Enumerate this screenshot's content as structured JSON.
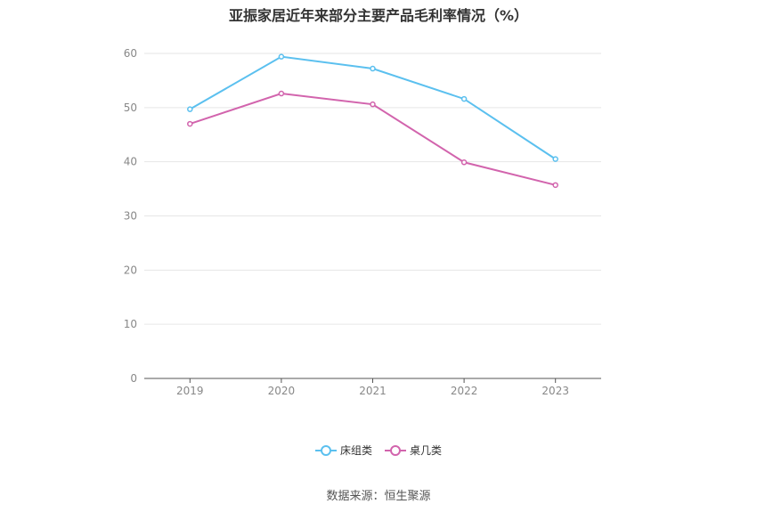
{
  "chart_data": {
    "type": "line",
    "title": "亚振家居近年来部分主要产品毛利率情况（%）",
    "categories": [
      "2019",
      "2020",
      "2021",
      "2022",
      "2023"
    ],
    "series": [
      {
        "name": "床组类",
        "color": "#5bc0ef",
        "values": [
          49.7,
          59.4,
          57.2,
          51.6,
          40.5
        ]
      },
      {
        "name": "桌几类",
        "color": "#d264ad",
        "values": [
          47.0,
          52.6,
          50.6,
          39.9,
          35.7
        ]
      }
    ],
    "ylim": [
      0,
      60
    ],
    "yticks": [
      0,
      10,
      20,
      30,
      40,
      50,
      60
    ],
    "grid": true,
    "legend_position": "bottom",
    "source": "数据来源：恒生聚源"
  }
}
